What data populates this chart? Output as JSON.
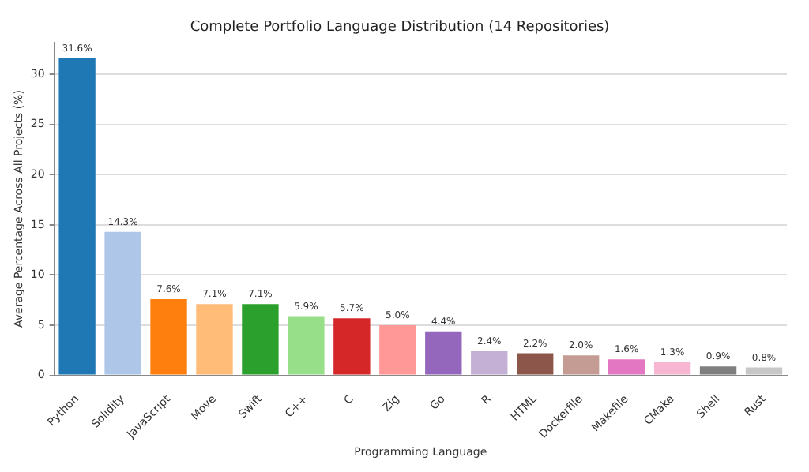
{
  "chart_data": {
    "type": "bar",
    "title": "Complete Portfolio Language Distribution (14 Repositories)",
    "xlabel": "Programming Language",
    "ylabel": "Average Percentage Across All Projects (%)",
    "categories": [
      "Python",
      "Solidity",
      "JavaScript",
      "Move",
      "Swift",
      "C++",
      "C",
      "Zig",
      "Go",
      "R",
      "HTML",
      "Dockerfile",
      "Makefile",
      "CMake",
      "Shell",
      "Rust"
    ],
    "values": [
      31.6,
      14.3,
      7.6,
      7.1,
      7.1,
      5.9,
      5.7,
      5.0,
      4.4,
      2.4,
      2.2,
      2.0,
      1.6,
      1.3,
      0.9,
      0.8
    ],
    "value_labels": [
      "31.6%",
      "14.3%",
      "7.6%",
      "7.1%",
      "7.1%",
      "5.9%",
      "5.7%",
      "5.0%",
      "4.4%",
      "2.4%",
      "2.2%",
      "2.0%",
      "1.6%",
      "1.3%",
      "0.9%",
      "0.8%"
    ],
    "colors": [
      "#1f77b4",
      "#aec7e8",
      "#ff7f0e",
      "#ffbb78",
      "#2ca02c",
      "#98df8a",
      "#d62728",
      "#ff9896",
      "#9467bd",
      "#c5b0d5",
      "#8c564b",
      "#c49c94",
      "#e377c2",
      "#f7b6d2",
      "#7f7f7f",
      "#c7c7c7"
    ],
    "ylim": [
      0,
      33.2
    ],
    "yticks": [
      0,
      5,
      10,
      15,
      20,
      25,
      30
    ],
    "grid": "y",
    "legend": false
  }
}
